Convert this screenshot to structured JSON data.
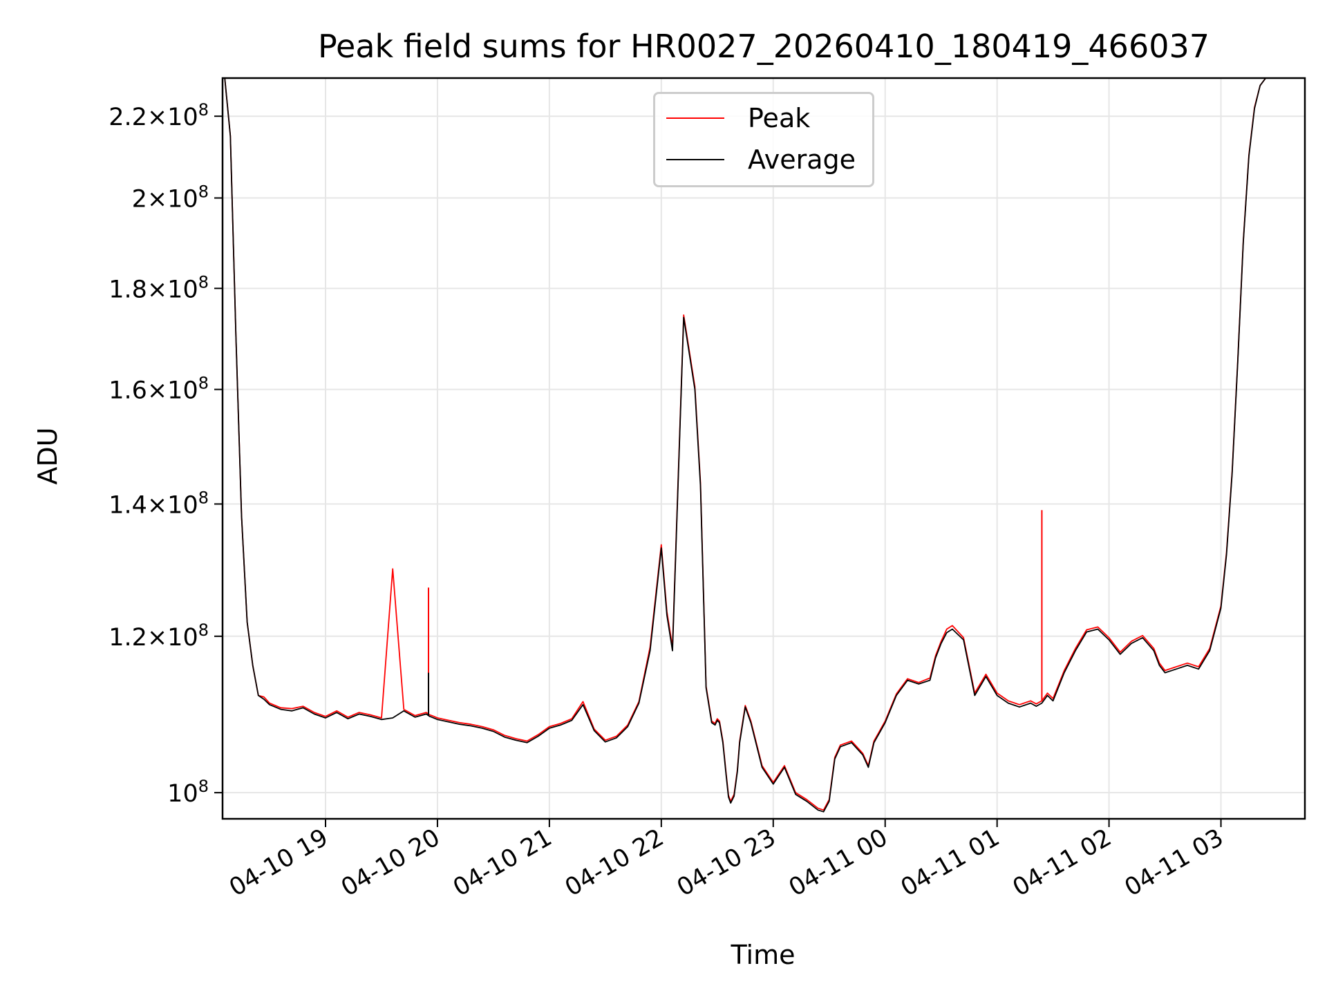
{
  "chart_data": {
    "type": "line",
    "title": "Peak field sums for HR0027_20260410_180419_466037",
    "xlabel": "Time",
    "ylabel": "ADU",
    "yscale": "log",
    "ylim": [
      97000000,
      230000000
    ],
    "xlim_hours": [
      18.08,
      27.75
    ],
    "grid": true,
    "legend_position": "upper center",
    "colors": {
      "Peak": "#ff0000",
      "Average": "#000000"
    },
    "x_ticks": [
      {
        "hour": 19,
        "label": "04-10 19"
      },
      {
        "hour": 20,
        "label": "04-10 20"
      },
      {
        "hour": 21,
        "label": "04-10 21"
      },
      {
        "hour": 22,
        "label": "04-10 22"
      },
      {
        "hour": 23,
        "label": "04-10 23"
      },
      {
        "hour": 24,
        "label": "04-11 00"
      },
      {
        "hour": 25,
        "label": "04-11 01"
      },
      {
        "hour": 26,
        "label": "04-11 02"
      },
      {
        "hour": 27,
        "label": "04-11 03"
      }
    ],
    "y_ticks": [
      {
        "value": 100000000,
        "mantissa": "",
        "exp": "8"
      },
      {
        "value": 120000000,
        "mantissa": "1.2",
        "exp": "8"
      },
      {
        "value": 140000000,
        "mantissa": "1.4",
        "exp": "8"
      },
      {
        "value": 160000000,
        "mantissa": "1.6",
        "exp": "8"
      },
      {
        "value": 180000000,
        "mantissa": "1.8",
        "exp": "8"
      },
      {
        "value": 200000000,
        "mantissa": "2",
        "exp": "8"
      },
      {
        "value": 220000000,
        "mantissa": "2.2",
        "exp": "8"
      }
    ],
    "series": [
      {
        "name": "Average",
        "x": [
          18.08,
          18.1,
          18.15,
          18.2,
          18.25,
          18.3,
          18.35,
          18.4,
          18.45,
          18.5,
          18.55,
          18.6,
          18.7,
          18.8,
          18.9,
          19.0,
          19.1,
          19.2,
          19.3,
          19.4,
          19.5,
          19.6,
          19.7,
          19.8,
          19.9,
          19.92,
          19.93,
          19.95,
          20.0,
          20.1,
          20.2,
          20.3,
          20.4,
          20.5,
          20.6,
          20.7,
          20.8,
          20.9,
          21.0,
          21.1,
          21.2,
          21.3,
          21.4,
          21.5,
          21.6,
          21.7,
          21.8,
          21.9,
          22.0,
          22.05,
          22.1,
          22.2,
          22.3,
          22.35,
          22.4,
          22.45,
          22.48,
          22.5,
          22.52,
          22.55,
          22.58,
          22.6,
          22.62,
          22.65,
          22.68,
          22.7,
          22.75,
          22.8,
          22.9,
          23.0,
          23.1,
          23.2,
          23.3,
          23.4,
          23.45,
          23.5,
          23.55,
          23.6,
          23.7,
          23.8,
          23.85,
          23.9,
          24.0,
          24.1,
          24.2,
          24.3,
          24.4,
          24.45,
          24.5,
          24.55,
          24.6,
          24.7,
          24.8,
          24.9,
          25.0,
          25.1,
          25.2,
          25.3,
          25.35,
          25.4,
          25.45,
          25.5,
          25.6,
          25.7,
          25.8,
          25.9,
          26.0,
          26.1,
          26.2,
          26.3,
          26.4,
          26.45,
          26.5,
          26.6,
          26.7,
          26.8,
          26.9,
          27.0,
          27.05,
          27.1,
          27.15,
          27.2,
          27.25,
          27.3,
          27.35,
          27.4,
          27.5,
          27.6,
          27.75
        ],
        "y": [
          230000000,
          230000000,
          215000000,
          170000000,
          138000000,
          122000000,
          116000000,
          112000000,
          111500000,
          110800000,
          110500000,
          110200000,
          110000000,
          110400000,
          109600000,
          109100000,
          109800000,
          109000000,
          109600000,
          109300000,
          108900000,
          109100000,
          110000000,
          109200000,
          109600000,
          109400000,
          109300000,
          109200000,
          108900000,
          108600000,
          108300000,
          108100000,
          107800000,
          107400000,
          106700000,
          106300000,
          106000000,
          106800000,
          107800000,
          108200000,
          108800000,
          110800000,
          107500000,
          106100000,
          106600000,
          108000000,
          111000000,
          118000000,
          133000000,
          123000000,
          118000000,
          174000000,
          160000000,
          143000000,
          113000000,
          108500000,
          108200000,
          108800000,
          108500000,
          106000000,
          102000000,
          99500000,
          98800000,
          99600000,
          102500000,
          106000000,
          110500000,
          108500000,
          103000000,
          101000000,
          103000000,
          99800000,
          99000000,
          98000000,
          97800000,
          99000000,
          104000000,
          105500000,
          106000000,
          104500000,
          103000000,
          106000000,
          108500000,
          112000000,
          114000000,
          113500000,
          114000000,
          117000000,
          119000000,
          120500000,
          121000000,
          119500000,
          112000000,
          114500000,
          112000000,
          111000000,
          110500000,
          111000000,
          110600000,
          111000000,
          112000000,
          111300000,
          115000000,
          118000000,
          120600000,
          121000000,
          119500000,
          117500000,
          119000000,
          119800000,
          118000000,
          116000000,
          115000000,
          115500000,
          116000000,
          115500000,
          118000000,
          124000000,
          132000000,
          145000000,
          165000000,
          190000000,
          210000000,
          222000000,
          228000000,
          230000000,
          230000000,
          230000000,
          230000000
        ]
      },
      {
        "name": "Peak",
        "x": [
          18.08,
          18.1,
          18.15,
          18.2,
          18.25,
          18.3,
          18.35,
          18.4,
          18.45,
          18.5,
          18.55,
          18.6,
          18.7,
          18.8,
          18.9,
          19.0,
          19.1,
          19.2,
          19.3,
          19.4,
          19.5,
          19.6,
          19.7,
          19.8,
          19.9,
          19.92,
          19.93,
          19.95,
          20.0,
          20.1,
          20.2,
          20.3,
          20.4,
          20.5,
          20.6,
          20.7,
          20.8,
          20.9,
          21.0,
          21.1,
          21.2,
          21.3,
          21.4,
          21.5,
          21.6,
          21.7,
          21.8,
          21.9,
          22.0,
          22.05,
          22.1,
          22.2,
          22.3,
          22.35,
          22.4,
          22.45,
          22.48,
          22.5,
          22.52,
          22.55,
          22.58,
          22.6,
          22.62,
          22.65,
          22.68,
          22.7,
          22.75,
          22.8,
          22.9,
          23.0,
          23.1,
          23.2,
          23.3,
          23.4,
          23.45,
          23.5,
          23.55,
          23.6,
          23.7,
          23.8,
          23.85,
          23.9,
          24.0,
          24.1,
          24.2,
          24.3,
          24.4,
          24.45,
          24.5,
          24.55,
          24.6,
          24.7,
          24.8,
          24.9,
          25.0,
          25.1,
          25.2,
          25.3,
          25.35,
          25.4,
          25.45,
          25.5,
          25.6,
          25.7,
          25.8,
          25.9,
          26.0,
          26.1,
          26.2,
          26.3,
          26.4,
          26.45,
          26.5,
          26.6,
          26.7,
          26.8,
          26.9,
          27.0,
          27.05,
          27.1,
          27.15,
          27.2,
          27.25,
          27.3,
          27.35,
          27.4,
          27.5,
          27.6,
          27.75
        ],
        "y": [
          230000000,
          230000000,
          215000000,
          170000000,
          138000000,
          122000000,
          116000000,
          112000000,
          111800000,
          111000000,
          110700000,
          110400000,
          110300000,
          110600000,
          109800000,
          109300000,
          110000000,
          109200000,
          109800000,
          109500000,
          109100000,
          129800000,
          110200000,
          109400000,
          109800000,
          109600000,
          109500000,
          109400000,
          109100000,
          108800000,
          108500000,
          108300000,
          108000000,
          107600000,
          106900000,
          106500000,
          106200000,
          107000000,
          108000000,
          108400000,
          109000000,
          111200000,
          107700000,
          106300000,
          106800000,
          108200000,
          111200000,
          118500000,
          133500000,
          123500000,
          118500000,
          174500000,
          160500000,
          143500000,
          113200000,
          108700000,
          108400000,
          109000000,
          108700000,
          106200000,
          102200000,
          99700000,
          99000000,
          99800000,
          102700000,
          106200000,
          110700000,
          108700000,
          103200000,
          101200000,
          103200000,
          100000000,
          99200000,
          98200000,
          98000000,
          99200000,
          104200000,
          105700000,
          106200000,
          104700000,
          103200000,
          106200000,
          108700000,
          112200000,
          114200000,
          113700000,
          114300000,
          117300000,
          119300000,
          121000000,
          121500000,
          119800000,
          112300000,
          114800000,
          112300000,
          111300000,
          110800000,
          111300000,
          110900000,
          111300000,
          112300000,
          111600000,
          115300000,
          118300000,
          120900000,
          121300000,
          119800000,
          117800000,
          119300000,
          120100000,
          118300000,
          116300000,
          115300000,
          115800000,
          116300000,
          115800000,
          118300000,
          124300000,
          132300000,
          145300000,
          165300000,
          190300000,
          210300000,
          222300000,
          228000000,
          230000000,
          230000000,
          230000000,
          230000000
        ]
      }
    ],
    "spikes": [
      {
        "series": "Peak",
        "x": 19.92,
        "y": 127000000
      },
      {
        "series": "Peak",
        "x": 25.4,
        "y": 139000000
      },
      {
        "series": "Average",
        "x": 19.92,
        "y": 115000000
      }
    ]
  }
}
